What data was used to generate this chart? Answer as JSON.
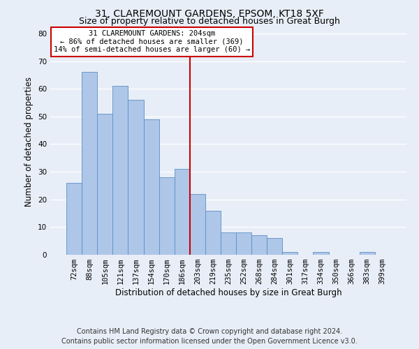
{
  "title1": "31, CLAREMOUNT GARDENS, EPSOM, KT18 5XF",
  "title2": "Size of property relative to detached houses in Great Burgh",
  "xlabel": "Distribution of detached houses by size in Great Burgh",
  "ylabel": "Number of detached properties",
  "categories": [
    "72sqm",
    "88sqm",
    "105sqm",
    "121sqm",
    "137sqm",
    "154sqm",
    "170sqm",
    "186sqm",
    "203sqm",
    "219sqm",
    "235sqm",
    "252sqm",
    "268sqm",
    "284sqm",
    "301sqm",
    "317sqm",
    "334sqm",
    "350sqm",
    "366sqm",
    "383sqm",
    "399sqm"
  ],
  "values": [
    26,
    66,
    51,
    61,
    56,
    49,
    28,
    31,
    22,
    16,
    8,
    8,
    7,
    6,
    1,
    0,
    1,
    0,
    0,
    1,
    0
  ],
  "bar_color": "#aec6e8",
  "bar_edge_color": "#5a8fc4",
  "vline_index": 8,
  "vline_color": "#cc0000",
  "annotation_text": "31 CLAREMOUNT GARDENS: 204sqm\n← 86% of detached houses are smaller (369)\n14% of semi-detached houses are larger (60) →",
  "annotation_box_color": "#ffffff",
  "annotation_box_edge": "#cc0000",
  "ylim": [
    0,
    82
  ],
  "yticks": [
    0,
    10,
    20,
    30,
    40,
    50,
    60,
    70,
    80
  ],
  "footer1": "Contains HM Land Registry data © Crown copyright and database right 2024.",
  "footer2": "Contains public sector information licensed under the Open Government Licence v3.0.",
  "background_color": "#e8eef7",
  "grid_color": "#ffffff",
  "title_fontsize": 10,
  "subtitle_fontsize": 9,
  "axis_label_fontsize": 8.5,
  "tick_fontsize": 7.5,
  "annotation_fontsize": 7.5,
  "footer_fontsize": 7
}
